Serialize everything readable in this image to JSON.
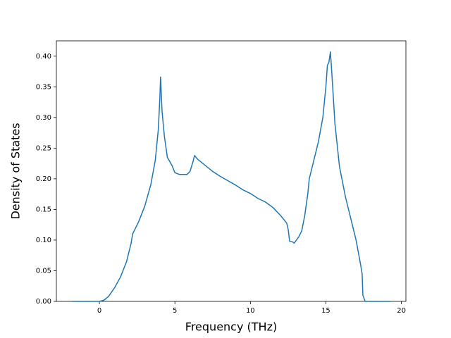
{
  "chart_data": {
    "type": "line",
    "x_label": "Frequency (THz)",
    "y_label": "Density of States",
    "x": [
      -1.8,
      0,
      0.3,
      0.6,
      1.0,
      1.4,
      1.8,
      2.1,
      2.2,
      2.6,
      3.0,
      3.4,
      3.7,
      3.9,
      4.0,
      4.05,
      4.15,
      4.3,
      4.5,
      4.8,
      5.0,
      5.3,
      5.8,
      6.0,
      6.2,
      6.3,
      6.5,
      7.0,
      7.5,
      8.0,
      8.5,
      9.0,
      9.5,
      10.0,
      10.5,
      11.0,
      11.5,
      12.0,
      12.4,
      12.5,
      12.6,
      12.8,
      12.9,
      13.2,
      13.4,
      13.6,
      13.8,
      13.9,
      14.2,
      14.5,
      14.8,
      15.0,
      15.1,
      15.2,
      15.3,
      15.4,
      15.6,
      15.9,
      16.3,
      16.7,
      17.0,
      17.3,
      17.4,
      17.45,
      17.6,
      19.25
    ],
    "series": [
      {
        "color": "#1f77b4",
        "values": [
          0,
          0,
          0.002,
          0.008,
          0.022,
          0.04,
          0.065,
          0.095,
          0.11,
          0.13,
          0.155,
          0.19,
          0.23,
          0.28,
          0.33,
          0.366,
          0.31,
          0.27,
          0.235,
          0.222,
          0.21,
          0.207,
          0.207,
          0.212,
          0.228,
          0.238,
          0.232,
          0.222,
          0.212,
          0.204,
          0.197,
          0.19,
          0.182,
          0.176,
          0.168,
          0.162,
          0.153,
          0.14,
          0.128,
          0.118,
          0.098,
          0.097,
          0.095,
          0.105,
          0.115,
          0.14,
          0.175,
          0.2,
          0.23,
          0.26,
          0.3,
          0.35,
          0.385,
          0.39,
          0.407,
          0.37,
          0.29,
          0.22,
          0.17,
          0.13,
          0.1,
          0.06,
          0.045,
          0.01,
          0,
          0
        ]
      }
    ],
    "xlim": [
      -2.85,
      20.3
    ],
    "ylim": [
      0,
      0.425
    ],
    "xticks": [
      0,
      5,
      10,
      15,
      20
    ],
    "yticks": [
      {
        "value": 0,
        "label": "0.00"
      },
      {
        "value": 0.05,
        "label": "0.05"
      },
      {
        "value": 0.1,
        "label": "0.10"
      },
      {
        "value": 0.15,
        "label": "0.15"
      },
      {
        "value": 0.2,
        "label": "0.20"
      },
      {
        "value": 0.25,
        "label": "0.25"
      },
      {
        "value": 0.3,
        "label": "0.30"
      },
      {
        "value": 0.35,
        "label": "0.35"
      },
      {
        "value": 0.4,
        "label": "0.40"
      }
    ]
  }
}
